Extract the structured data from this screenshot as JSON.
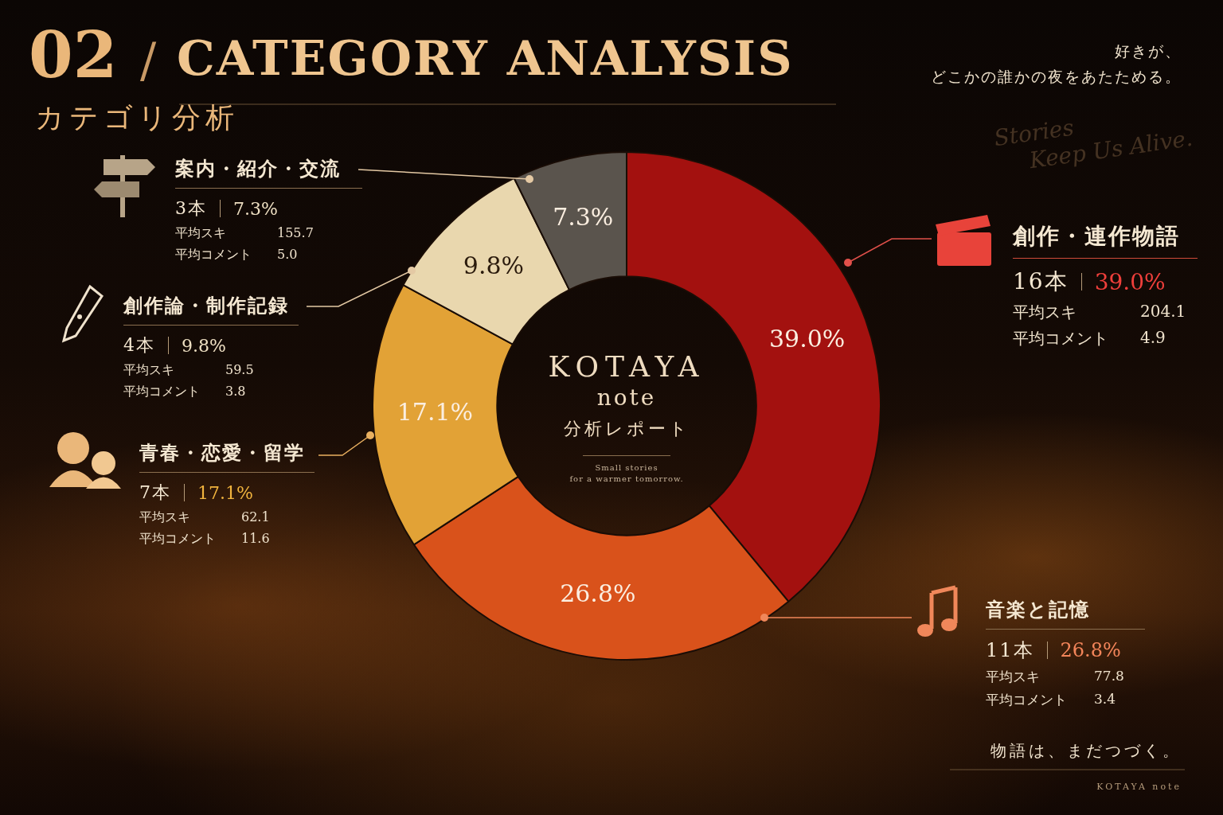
{
  "header": {
    "number": "02",
    "separator": "/",
    "title": "CATEGORY ANALYSIS",
    "subtitle": "カテゴリ分析",
    "tagline": [
      "好きが、",
      "どこかの誰かの夜をあたためる。"
    ],
    "script_text": [
      "Stories",
      "Keep Us Alive."
    ]
  },
  "center": {
    "title": "KOTAYA",
    "subtitle": "note",
    "caption": "分析レポート",
    "small": [
      "Small stories",
      "for a warmer tomorrow."
    ]
  },
  "footer": {
    "text": "物語は、まだつづく。",
    "brand": "KOTAYA note"
  },
  "chart_data": {
    "type": "doughnut",
    "categories": [
      "創作・連作物語",
      "音楽と記憶",
      "青春・恋愛・留学",
      "創作論・制作記録",
      "案内・紹介・交流"
    ],
    "values": [
      39.0,
      26.8,
      17.1,
      9.8,
      7.3
    ],
    "value_labels": [
      "39.0%",
      "26.8%",
      "17.1%",
      "9.8%",
      "7.3%"
    ],
    "colors": [
      "#a3110f",
      "#d9521b",
      "#e2a236",
      "#e9d7ae",
      "#5a544d"
    ],
    "data_labels": true
  },
  "stats": {
    "count_labels": [
      "16本",
      "11本",
      "7本",
      "4本",
      "3本"
    ],
    "avg_likes_label": "平均スキ",
    "avg_likes": [
      204.1,
      77.8,
      62.1,
      59.5,
      155.7
    ],
    "avg_comments_label": "平均コメント",
    "avg_comments": [
      "4.9",
      "3.4",
      "11.6",
      "3.8",
      "5.0"
    ]
  }
}
